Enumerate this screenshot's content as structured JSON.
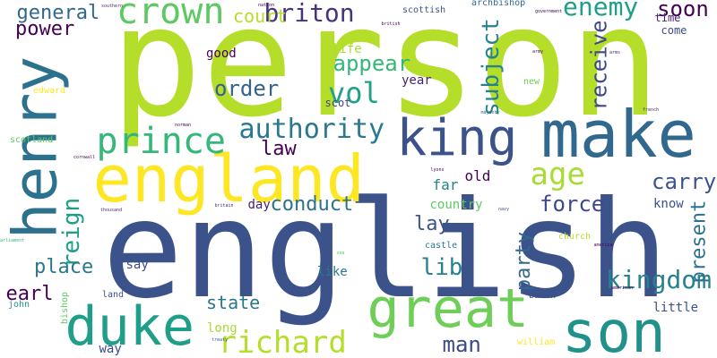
{
  "words": [
    {
      "text": "person",
      "color": "#b5de2b"
    },
    {
      "text": "english",
      "color": "#3b528b"
    },
    {
      "text": "england",
      "color": "#fde725"
    },
    {
      "text": "henry",
      "color": "#2c728e"
    },
    {
      "text": "make",
      "color": "#31688e"
    },
    {
      "text": "king",
      "color": "#3b528b"
    },
    {
      "text": "great",
      "color": "#6ece58"
    },
    {
      "text": "son",
      "color": "#21918c"
    },
    {
      "text": "duke",
      "color": "#1f9e89"
    },
    {
      "text": "crown",
      "color": "#5ec962"
    },
    {
      "text": "prince",
      "color": "#35b779"
    },
    {
      "text": "richard",
      "color": "#b5de2b"
    },
    {
      "text": "kingdom",
      "color": "#26828e"
    },
    {
      "text": "age",
      "color": "#a8db34"
    },
    {
      "text": "enemy",
      "color": "#1f9e89"
    },
    {
      "text": "authority",
      "color": "#2a788e"
    },
    {
      "text": "vol",
      "color": "#1fa187"
    },
    {
      "text": "briton",
      "color": "#46327e"
    },
    {
      "text": "general",
      "color": "#31688e"
    },
    {
      "text": "power",
      "color": "#440154"
    },
    {
      "text": "court",
      "color": "#b5de2b"
    },
    {
      "text": "soon",
      "color": "#440154"
    },
    {
      "text": "appear",
      "color": "#35b779"
    },
    {
      "text": "order",
      "color": "#33638d"
    },
    {
      "text": "subject",
      "color": "#26828e"
    },
    {
      "text": "receive",
      "color": "#3e4989"
    },
    {
      "text": "law",
      "color": "#440154"
    },
    {
      "text": "carry",
      "color": "#3b528b"
    },
    {
      "text": "force",
      "color": "#3e4989"
    },
    {
      "text": "reign",
      "color": "#1f9e89"
    },
    {
      "text": "conduct",
      "color": "#2c728e"
    },
    {
      "text": "lay",
      "color": "#3b528b"
    },
    {
      "text": "lib",
      "color": "#26828e"
    },
    {
      "text": "place",
      "color": "#2a788e"
    },
    {
      "text": "party",
      "color": "#31688e"
    },
    {
      "text": "present",
      "color": "#2c728e"
    },
    {
      "text": "earl",
      "color": "#440154"
    },
    {
      "text": "state",
      "color": "#2a788e"
    },
    {
      "text": "man",
      "color": "#3e4989"
    },
    {
      "text": "good",
      "color": "#440154"
    },
    {
      "text": "year",
      "color": "#481f70"
    },
    {
      "text": "life",
      "color": "#a8db34"
    },
    {
      "text": "scot",
      "color": "#3e4989"
    },
    {
      "text": "old",
      "color": "#440154"
    },
    {
      "text": "far",
      "color": "#26828e"
    },
    {
      "text": "country",
      "color": "#5ec962"
    },
    {
      "text": "day",
      "color": "#481f70"
    },
    {
      "text": "say",
      "color": "#3e4989"
    },
    {
      "text": "like",
      "color": "#2a788e"
    },
    {
      "text": "long",
      "color": "#a8db34"
    },
    {
      "text": "way",
      "color": "#3e4989"
    },
    {
      "text": "know",
      "color": "#3b528b"
    },
    {
      "text": "little",
      "color": "#3b528b"
    },
    {
      "text": "time",
      "color": "#481f70"
    },
    {
      "text": "come",
      "color": "#3e4989"
    },
    {
      "text": "scottish",
      "color": "#3b528b"
    },
    {
      "text": "archbishop",
      "color": "#31688e"
    },
    {
      "text": "new",
      "color": "#6ece58"
    },
    {
      "text": "scotland",
      "color": "#5ec962"
    },
    {
      "text": "edward",
      "color": "#fde725"
    },
    {
      "text": "castle",
      "color": "#2a788e"
    },
    {
      "text": "church",
      "color": "#b5de2b"
    },
    {
      "text": "land",
      "color": "#3b528b"
    },
    {
      "text": "bishop",
      "color": "#5ec962"
    },
    {
      "text": "john",
      "color": "#21918c"
    },
    {
      "text": "baron",
      "color": "#3b528b"
    },
    {
      "text": "william",
      "color": "#fde725"
    },
    {
      "text": "southern",
      "color": "#481f70"
    },
    {
      "text": "government",
      "color": "#440154"
    },
    {
      "text": "british",
      "color": "#440154"
    },
    {
      "text": "french",
      "color": "#481f70"
    },
    {
      "text": "thousand",
      "color": "#481f70"
    },
    {
      "text": "britain",
      "color": "#481f70"
    },
    {
      "text": "parliament",
      "color": "#35b779"
    },
    {
      "text": "treaty",
      "color": "#3b528b"
    },
    {
      "text": "american",
      "color": "#440154"
    },
    {
      "text": "majesty",
      "color": "#31688e"
    },
    {
      "text": "nation",
      "color": "#440154"
    },
    {
      "text": "army",
      "color": "#440154"
    },
    {
      "text": "arms",
      "color": "#481f70"
    },
    {
      "text": "lyons",
      "color": "#440154"
    },
    {
      "text": "america",
      "color": "#440154"
    },
    {
      "text": "navy",
      "color": "#3b528b"
    },
    {
      "text": "norman",
      "color": "#440154"
    },
    {
      "text": "cornwall",
      "color": "#440154"
    },
    {
      "text": "sea",
      "color": "#5ec962"
    }
  ]
}
